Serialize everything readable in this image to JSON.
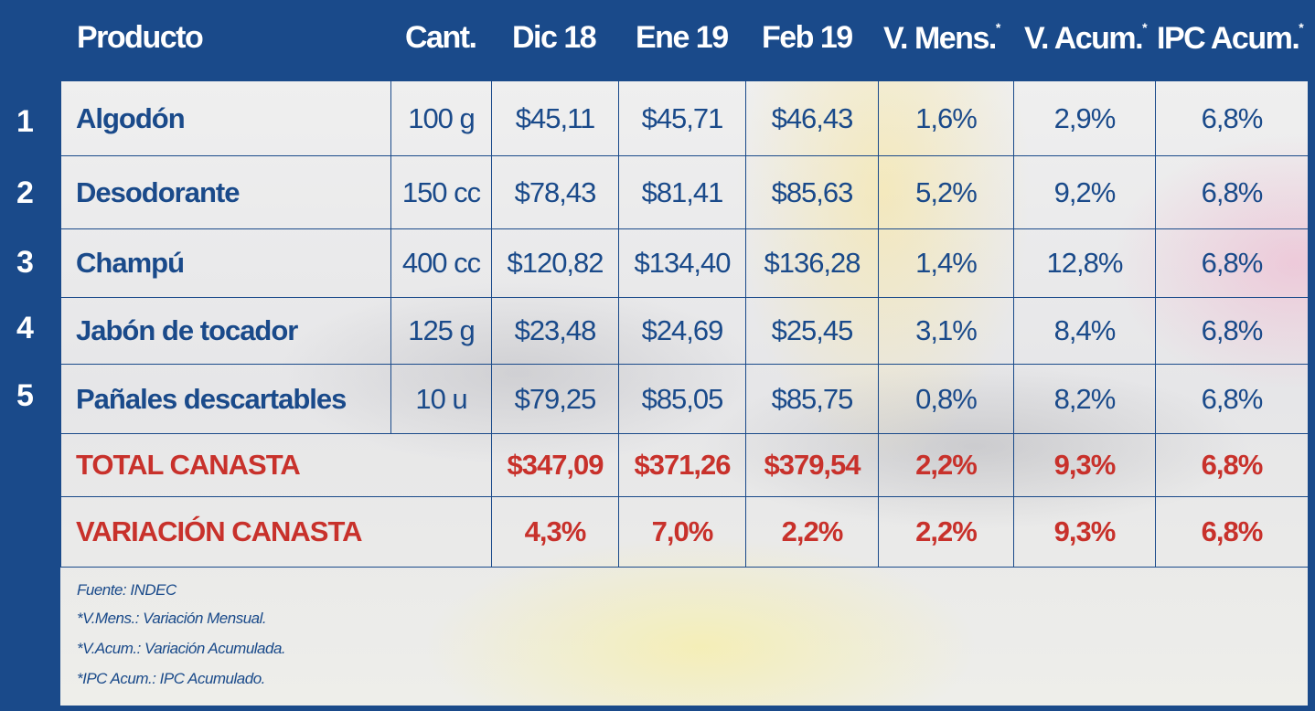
{
  "chart_data": {
    "type": "table",
    "headers": [
      "Producto",
      "Cant.",
      "Dic  18",
      "Ene 19",
      "Feb 19",
      "V. Mens.",
      "V. Acum.",
      "IPC Acum."
    ],
    "header_marks": [
      "",
      "",
      "",
      "",
      "",
      "*",
      "*",
      "*"
    ],
    "rows": [
      {
        "n": "1",
        "cells": [
          "Algodón",
          "100 g",
          "$45,11",
          "$45,71",
          "$46,43",
          "1,6%",
          "2,9%",
          "6,8%"
        ]
      },
      {
        "n": "2",
        "cells": [
          "Desodorante",
          "150 cc",
          "$78,43",
          "$81,41",
          "$85,63",
          "5,2%",
          "9,2%",
          "6,8%"
        ]
      },
      {
        "n": "3",
        "cells": [
          "Champú",
          "400 cc",
          "$120,82",
          "$134,40",
          "$136,28",
          "1,4%",
          "12,8%",
          "6,8%"
        ]
      },
      {
        "n": "4",
        "cells": [
          "Jabón de tocador",
          "125 g",
          "$23,48",
          "$24,69",
          "$25,45",
          "3,1%",
          "8,4%",
          "6,8%"
        ]
      },
      {
        "n": "5",
        "cells": [
          "Pañales descartables",
          "10 u",
          "$79,25",
          "$85,05",
          "$85,75",
          "0,8%",
          "8,2%",
          "6,8%"
        ]
      }
    ],
    "totals": [
      {
        "label": "TOTAL CANASTA",
        "cells": [
          "$347,09",
          "$371,26",
          "$379,54",
          "2,2%",
          "9,3%",
          "6,8%"
        ]
      },
      {
        "label": "VARIACIÓN CANASTA",
        "cells": [
          "4,3%",
          "7,0%",
          "2,2%",
          "2,2%",
          "9,3%",
          "6,8%"
        ]
      }
    ]
  },
  "footnotes": [
    "Fuente: INDEC",
    "*V.Mens.: Variación Mensual.",
    "*V.Acum.: Variación Acumulada.",
    "*IPC Acum.: IPC  Acumulado."
  ],
  "colors": {
    "brand_blue": "#1a4a8a",
    "total_red": "#c8312b"
  }
}
